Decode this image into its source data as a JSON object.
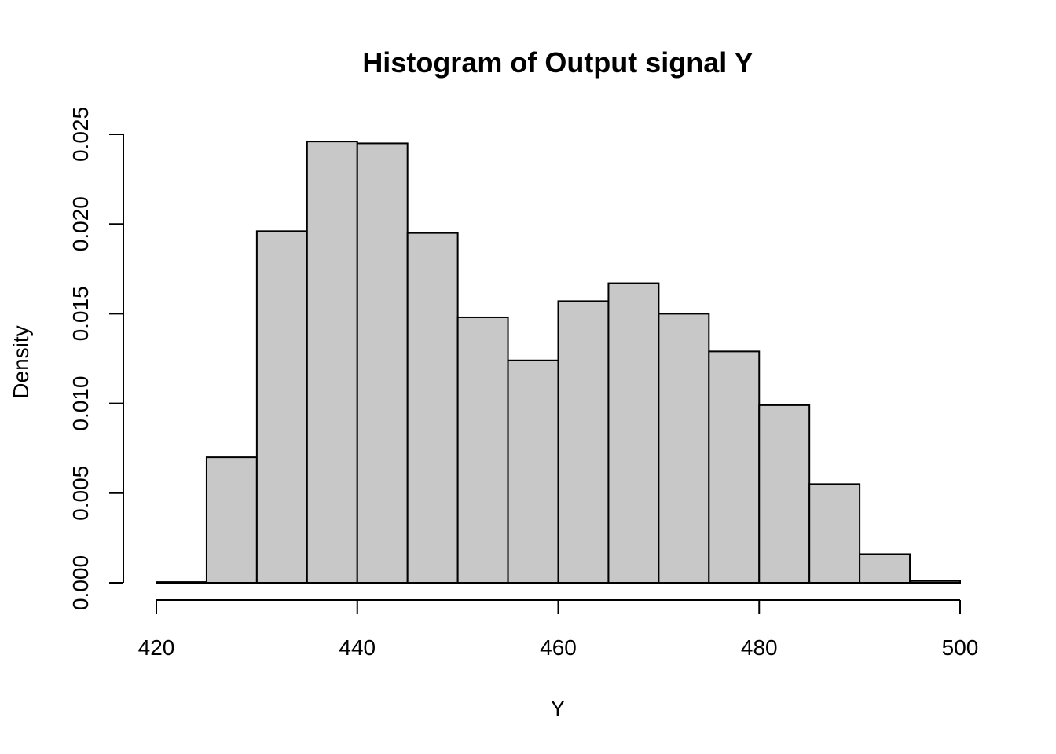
{
  "chart_data": {
    "type": "bar",
    "title": "Histogram of Output signal Y",
    "xlabel": "Y",
    "ylabel": "Density",
    "xlim": [
      420,
      500
    ],
    "ylim": [
      0,
      0.025
    ],
    "x_ticks": [
      "420",
      "440",
      "460",
      "480",
      "500"
    ],
    "y_ticks": [
      "0.000",
      "0.005",
      "0.010",
      "0.015",
      "0.020",
      "0.025"
    ],
    "bin_edges": [
      420,
      425,
      430,
      435,
      440,
      445,
      450,
      455,
      460,
      465,
      470,
      475,
      480,
      485,
      490,
      495,
      500
    ],
    "values": [
      4e-05,
      0.007,
      0.0196,
      0.0246,
      0.0245,
      0.0195,
      0.0148,
      0.0124,
      0.0157,
      0.0167,
      0.015,
      0.0129,
      0.0099,
      0.0055,
      0.0016,
      0.0001
    ],
    "bar_color": "#c8c8c8",
    "edge_color": "#000000",
    "grid": false
  }
}
